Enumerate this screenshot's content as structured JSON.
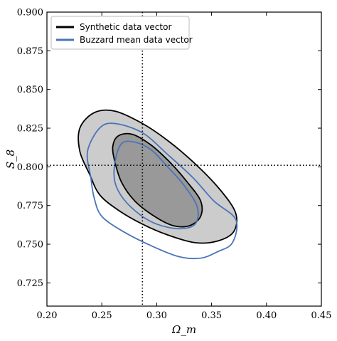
{
  "chart_data": {
    "type": "contour",
    "xlabel": "Ω_m",
    "ylabel": "S_8",
    "xlim": [
      0.2,
      0.45
    ],
    "ylim": [
      0.71,
      0.9
    ],
    "xticks": [
      "0.20",
      "0.25",
      "0.30",
      "0.35",
      "0.40",
      "0.45"
    ],
    "yticks": [
      "0.725",
      "0.750",
      "0.775",
      "0.800",
      "0.825",
      "0.850",
      "0.875",
      "0.900"
    ],
    "reference_lines": {
      "x": 0.287,
      "y": 0.801,
      "style": "dotted"
    },
    "legend": {
      "placement": "top-left"
    },
    "series": [
      {
        "name": "Synthetic data vector",
        "color": "#000000",
        "fill_outer": "#cccccc",
        "fill_inner": "#999999",
        "contours": {
          "outer_95": [
            [
              0.243,
              0.835
            ],
            [
              0.262,
              0.836
            ],
            [
              0.287,
              0.828
            ],
            [
              0.31,
              0.817
            ],
            [
              0.335,
              0.802
            ],
            [
              0.358,
              0.785
            ],
            [
              0.372,
              0.77
            ],
            [
              0.37,
              0.758
            ],
            [
              0.355,
              0.752
            ],
            [
              0.335,
              0.751
            ],
            [
              0.31,
              0.756
            ],
            [
              0.287,
              0.763
            ],
            [
              0.265,
              0.772
            ],
            [
              0.248,
              0.782
            ],
            [
              0.239,
              0.795
            ],
            [
              0.23,
              0.81
            ],
            [
              0.23,
              0.825
            ]
          ],
          "inner_68": [
            [
              0.265,
              0.82
            ],
            [
              0.278,
              0.821
            ],
            [
              0.295,
              0.814
            ],
            [
              0.312,
              0.803
            ],
            [
              0.328,
              0.79
            ],
            [
              0.34,
              0.778
            ],
            [
              0.34,
              0.768
            ],
            [
              0.33,
              0.762
            ],
            [
              0.315,
              0.762
            ],
            [
              0.298,
              0.768
            ],
            [
              0.28,
              0.778
            ],
            [
              0.268,
              0.79
            ],
            [
              0.262,
              0.803
            ],
            [
              0.26,
              0.813
            ]
          ]
        }
      },
      {
        "name": "Buzzard mean data vector",
        "color": "#4a74b8",
        "contours": {
          "outer_95": [
            [
              0.248,
              0.825
            ],
            [
              0.262,
              0.828
            ],
            [
              0.287,
              0.822
            ],
            [
              0.31,
              0.808
            ],
            [
              0.333,
              0.793
            ],
            [
              0.352,
              0.778
            ],
            [
              0.372,
              0.766
            ],
            [
              0.369,
              0.751
            ],
            [
              0.355,
              0.745
            ],
            [
              0.34,
              0.741
            ],
            [
              0.32,
              0.742
            ],
            [
              0.295,
              0.749
            ],
            [
              0.27,
              0.758
            ],
            [
              0.25,
              0.768
            ],
            [
              0.243,
              0.78
            ],
            [
              0.24,
              0.793
            ],
            [
              0.237,
              0.81
            ]
          ],
          "inner_68": [
            [
              0.268,
              0.815
            ],
            [
              0.28,
              0.816
            ],
            [
              0.295,
              0.811
            ],
            [
              0.31,
              0.8
            ],
            [
              0.325,
              0.788
            ],
            [
              0.337,
              0.774
            ],
            [
              0.335,
              0.763
            ],
            [
              0.32,
              0.76
            ],
            [
              0.3,
              0.763
            ],
            [
              0.285,
              0.769
            ],
            [
              0.27,
              0.779
            ],
            [
              0.262,
              0.79
            ],
            [
              0.262,
              0.803
            ]
          ]
        }
      }
    ]
  }
}
